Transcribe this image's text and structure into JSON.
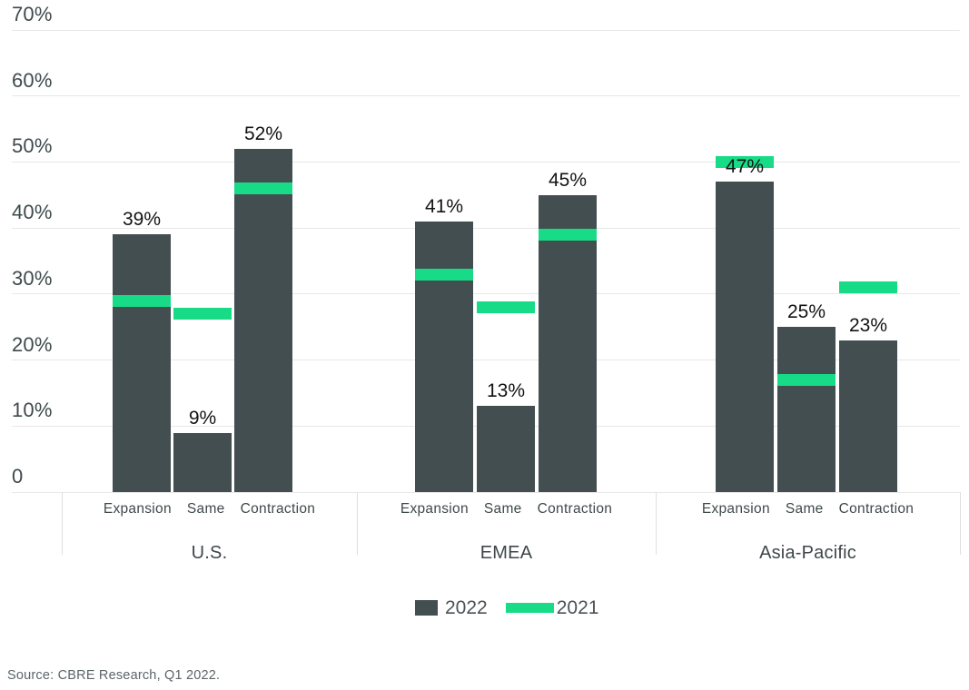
{
  "chart_data": {
    "type": "bar",
    "title": "",
    "xlabel": "",
    "ylabel": "",
    "grid": "horizontal",
    "legend_position": "bottom",
    "y_axis": {
      "min": 0,
      "max": 70,
      "tick_step": 10,
      "ticks": [
        {
          "value": 0,
          "label": "0"
        },
        {
          "value": 10,
          "label": "10%"
        },
        {
          "value": 20,
          "label": "20%"
        },
        {
          "value": 30,
          "label": "30%"
        },
        {
          "value": 40,
          "label": "40%"
        },
        {
          "value": 50,
          "label": "50%"
        },
        {
          "value": 60,
          "label": "60%"
        },
        {
          "value": 70,
          "label": "70%"
        }
      ]
    },
    "categories": [
      "Expansion",
      "Same",
      "Contraction"
    ],
    "series": [
      {
        "name": "2022",
        "style": "bar",
        "color": "#434e50"
      },
      {
        "name": "2021",
        "style": "dash",
        "color": "#17db87"
      }
    ],
    "groups": [
      {
        "label": "U.S.",
        "values_2022": [
          39,
          9,
          52
        ],
        "values_2021": [
          29,
          27,
          46
        ]
      },
      {
        "label": "EMEA",
        "values_2022": [
          41,
          13,
          45
        ],
        "values_2021": [
          33,
          28,
          39
        ]
      },
      {
        "label": "Asia-Pacific",
        "values_2022": [
          47,
          25,
          23
        ],
        "values_2021": [
          50,
          17,
          31
        ]
      }
    ],
    "data_label_suffix": "%"
  },
  "legend": {
    "items": [
      {
        "label": "2022",
        "color": "#434e50"
      },
      {
        "label": "2021",
        "color": "#17db87"
      }
    ]
  },
  "source": {
    "text": "Source: CBRE Research, Q1 2022."
  }
}
